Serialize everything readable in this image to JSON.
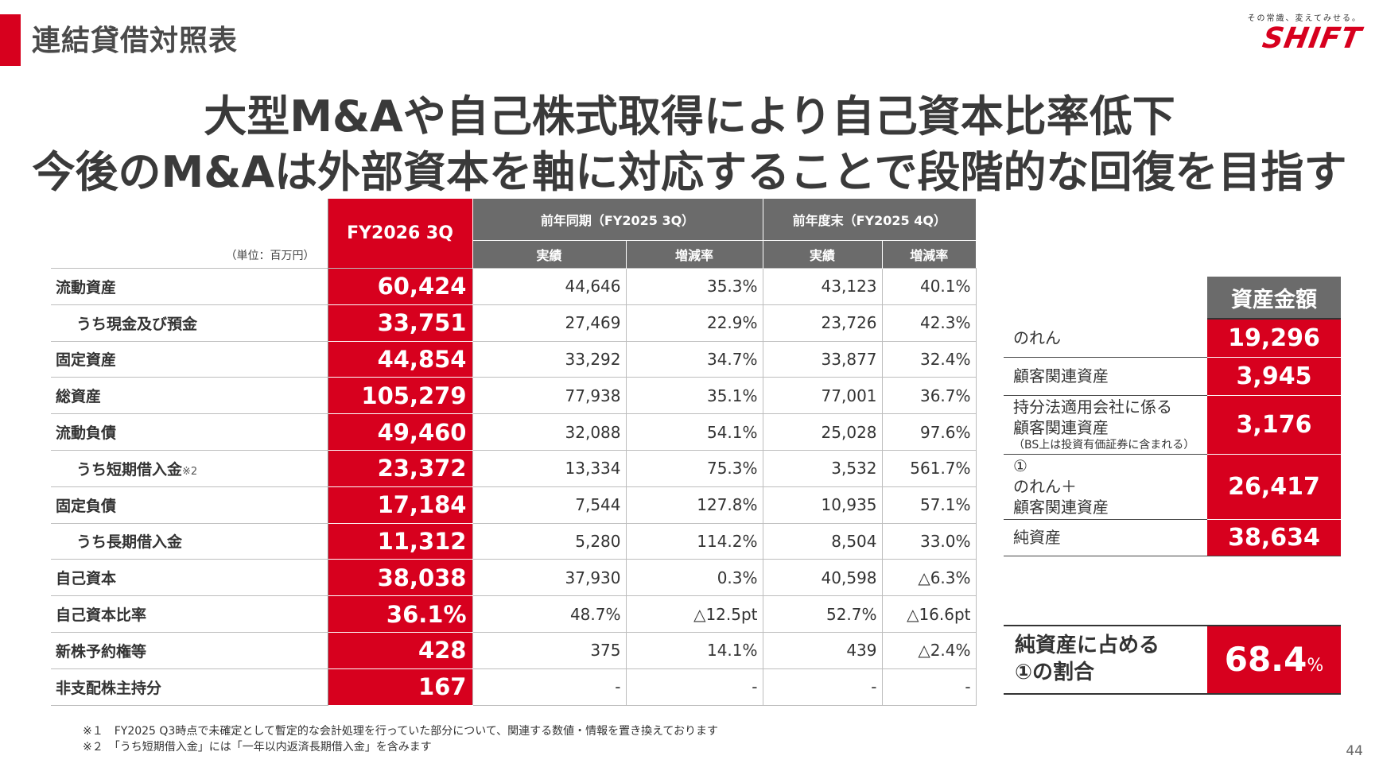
{
  "header": {
    "title": "連結貸借対照表",
    "logo_tagline": "その常識、変えてみせる。",
    "logo_text": "SHIFT"
  },
  "headline": {
    "line1": "大型M&Aや自己株式取得により自己資本比率低下",
    "line2": "今後のM&Aは外部資本を軸に対応することで段階的な回復を目指す"
  },
  "colors": {
    "accent": "#d7001e",
    "header_gray": "#6b6b6b"
  },
  "table": {
    "unit": "（単位：百万円）",
    "current_period": "FY2026 3Q",
    "group1": "前年同期（FY2025 3Q）",
    "group2": "前年度末（FY2025 4Q）",
    "sub_actual": "実績",
    "sub_change": "増減率",
    "rows": [
      {
        "label": "流動資産",
        "note": "",
        "indent": false,
        "current": "60,424",
        "prev_actual": "44,646",
        "prev_change": "35.3%",
        "end_actual": "43,123",
        "end_change": "40.1%"
      },
      {
        "label": "うち現金及び預金",
        "note": "",
        "indent": true,
        "current": "33,751",
        "prev_actual": "27,469",
        "prev_change": "22.9%",
        "end_actual": "23,726",
        "end_change": "42.3%"
      },
      {
        "label": "固定資産",
        "note": "",
        "indent": false,
        "current": "44,854",
        "prev_actual": "33,292",
        "prev_change": "34.7%",
        "end_actual": "33,877",
        "end_change": "32.4%"
      },
      {
        "label": "総資産",
        "note": "",
        "indent": false,
        "current": "105,279",
        "prev_actual": "77,938",
        "prev_change": "35.1%",
        "end_actual": "77,001",
        "end_change": "36.7%"
      },
      {
        "label": "流動負債",
        "note": "",
        "indent": false,
        "current": "49,460",
        "prev_actual": "32,088",
        "prev_change": "54.1%",
        "end_actual": "25,028",
        "end_change": "97.6%"
      },
      {
        "label": "うち短期借入金",
        "note": "※2",
        "indent": true,
        "current": "23,372",
        "prev_actual": "13,334",
        "prev_change": "75.3%",
        "end_actual": "3,532",
        "end_change": "561.7%"
      },
      {
        "label": "固定負債",
        "note": "",
        "indent": false,
        "current": "17,184",
        "prev_actual": "7,544",
        "prev_change": "127.8%",
        "end_actual": "10,935",
        "end_change": "57.1%"
      },
      {
        "label": "うち長期借入金",
        "note": "",
        "indent": true,
        "current": "11,312",
        "prev_actual": "5,280",
        "prev_change": "114.2%",
        "end_actual": "8,504",
        "end_change": "33.0%"
      },
      {
        "label": "自己資本",
        "note": "",
        "indent": false,
        "current": "38,038",
        "prev_actual": "37,930",
        "prev_change": "0.3%",
        "end_actual": "40,598",
        "end_change": "△6.3%"
      },
      {
        "label": "自己資本比率",
        "note": "",
        "indent": false,
        "current": "36.1%",
        "prev_actual": "48.7%",
        "prev_change": "△12.5pt",
        "end_actual": "52.7%",
        "end_change": "△16.6pt"
      },
      {
        "label": "新株予約権等",
        "note": "",
        "indent": false,
        "current": "428",
        "prev_actual": "375",
        "prev_change": "14.1%",
        "end_actual": "439",
        "end_change": "△2.4%"
      },
      {
        "label": "非支配株主持分",
        "note": "",
        "indent": false,
        "current": "167",
        "prev_actual": "-",
        "prev_change": "-",
        "end_actual": "-",
        "end_change": "-"
      }
    ]
  },
  "side": {
    "header": "資産金額",
    "rows": [
      {
        "lines": [
          "のれん"
        ],
        "sub": "",
        "value": "19,296"
      },
      {
        "lines": [
          "顧客関連資産"
        ],
        "sub": "",
        "value": "3,945"
      },
      {
        "lines": [
          "持分法適用会社に係る",
          "顧客関連資産"
        ],
        "sub": "（BS上は投資有価証券に含まれる）",
        "value": "3,176"
      },
      {
        "lines": [
          "①",
          "のれん＋",
          "顧客関連資産"
        ],
        "sub": "",
        "value": "26,417"
      },
      {
        "lines": [
          "純資産"
        ],
        "sub": "",
        "value": "38,634"
      }
    ],
    "ratio_label_1": "純資産に占める",
    "ratio_label_2": "①の割合",
    "ratio_value": "68.4",
    "ratio_unit": "%"
  },
  "footnotes": {
    "note1": "※１　FY2025 Q3時点で未確定として暫定的な会計処理を行っていた部分について、関連する数値・情報を置き換えております",
    "note2": "※２　「うち短期借入金」には「一年以内返済長期借入金」を含みます"
  },
  "page_number": "44"
}
